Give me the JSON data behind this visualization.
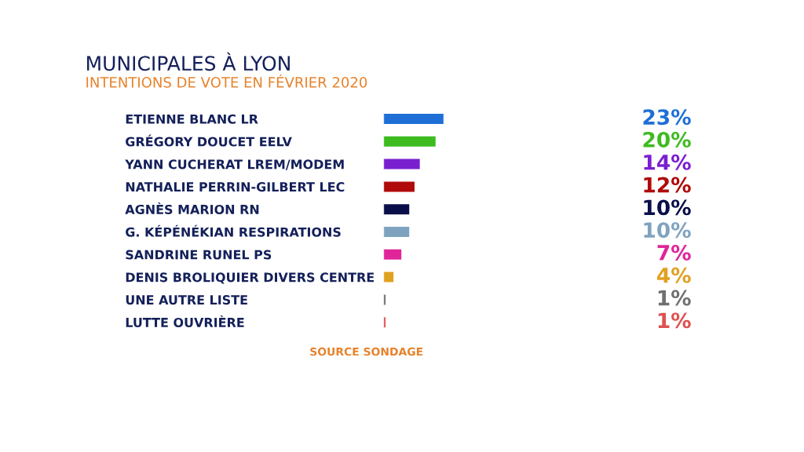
{
  "chart_data": {
    "type": "bar",
    "orientation": "horizontal",
    "title": "MUNICIPALES À LYON",
    "subtitle": "INTENTIONS DE VOTE EN FÉVRIER 2020",
    "categories": [
      "ETIENNE BLANC LR",
      "GRÉGORY DOUCET EELV",
      "YANN CUCHERAT LREM/MODEM",
      "NATHALIE PERRIN-GILBERT LEC",
      "AGNÈS MARION RN",
      "G. KÉPÉNÉKIAN RESPIRATIONS",
      "SANDRINE RUNEL PS",
      "DENIS BROLIQUIER DIVERS CENTRE",
      "UNE AUTRE LISTE",
      "LUTTE OUVRIÈRE"
    ],
    "values": [
      23,
      20,
      14,
      12,
      10,
      10,
      7,
      4,
      1,
      1
    ],
    "value_labels": [
      "23%",
      "20%",
      "14%",
      "12%",
      "10%",
      "10%",
      "7%",
      "4%",
      "1%",
      "1%"
    ],
    "colors": [
      "#1f6fd6",
      "#3dbb1f",
      "#7a1fd0",
      "#b00a0a",
      "#0a0f4a",
      "#7fa3bf",
      "#e0249a",
      "#e0a020",
      "#707070",
      "#e05050"
    ],
    "tick_labels": "y",
    "grid": false,
    "legend": false,
    "annotations": [
      "SOURCE SONDAGE"
    ]
  }
}
